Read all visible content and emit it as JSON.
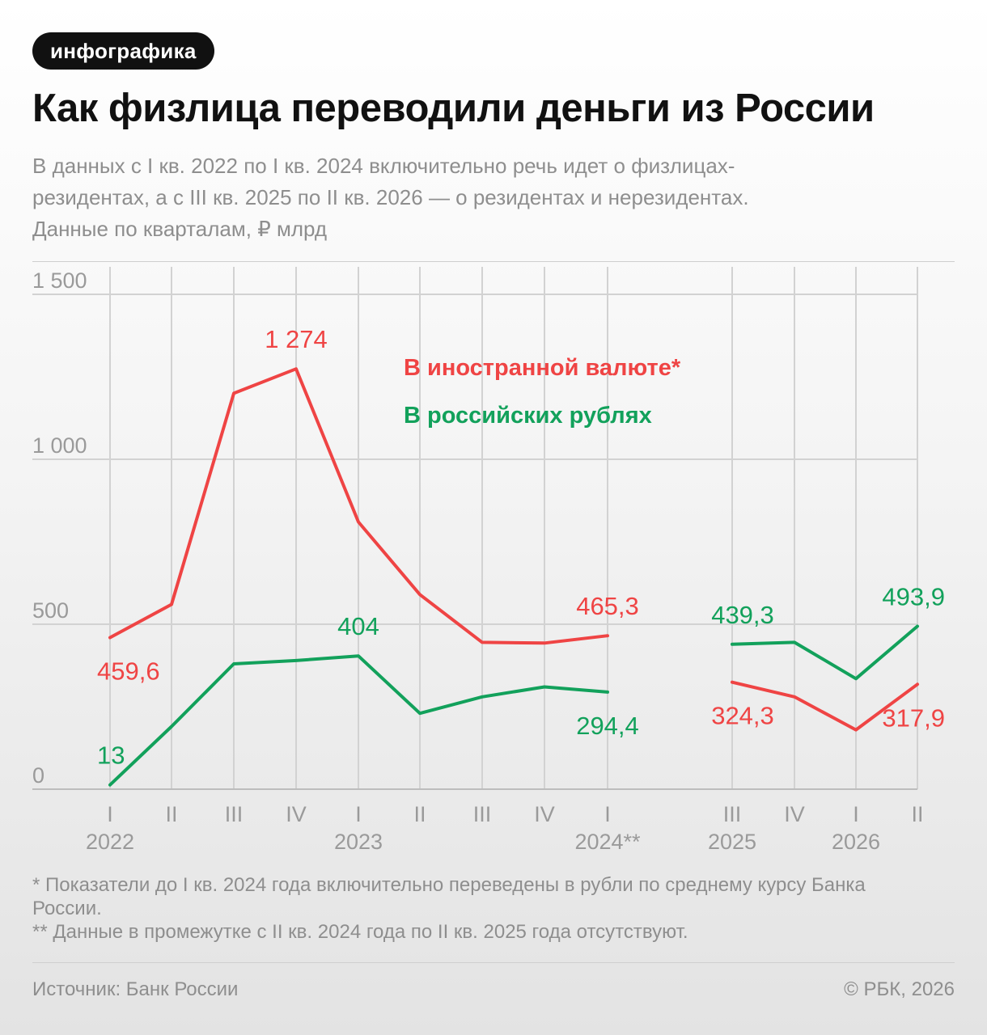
{
  "badge": "инфографика",
  "title": "Как физлица переводили деньги из России",
  "subtitle_lines": [
    "В данных с I кв. 2022 по I кв. 2024 включительно речь идет о физлицах-",
    "резидентах, а с III кв. 2025 по II кв. 2026 — о резидентах и нерезидентах.",
    "Данные по кварталам, ₽ млрд"
  ],
  "notes": [
    "* Показатели до I кв. 2024 года включительно переведены в рубли по среднему курсу Банка России.",
    "** Данные в промежутке с II кв. 2024 года по II кв. 2025 года отсутствуют."
  ],
  "source": "Источник: Банк России",
  "copyright": "© РБК, 2026",
  "chart_data": {
    "type": "line",
    "ylim": [
      0,
      1500
    ],
    "yticks": [
      0,
      500,
      1000,
      1500
    ],
    "ytick_labels": [
      "0",
      "500",
      "1 000",
      "1 500"
    ],
    "grid": true,
    "categories": [
      "I",
      "II",
      "III",
      "IV",
      "I",
      "II",
      "III",
      "IV",
      "I",
      "III",
      "IV",
      "I",
      "II"
    ],
    "year_labels": [
      {
        "index": 0,
        "label": "2022"
      },
      {
        "index": 4,
        "label": "2023"
      },
      {
        "index": 8,
        "label": "2024**"
      },
      {
        "index": 9,
        "label": "2025"
      },
      {
        "index": 11,
        "label": "2026"
      }
    ],
    "segments": [
      [
        0,
        8
      ],
      [
        9,
        12
      ]
    ],
    "series": [
      {
        "name": "В иностранной валюте*",
        "color": "#ef4444",
        "values": [
          459.6,
          560,
          1200,
          1274,
          810,
          590,
          445,
          443,
          465.3,
          324.3,
          280,
          180,
          317.9
        ],
        "data_labels": [
          {
            "index": 0,
            "text": "459,6",
            "pos": "below"
          },
          {
            "index": 3,
            "text": "1 274",
            "pos": "above"
          },
          {
            "index": 8,
            "text": "465,3",
            "pos": "above"
          },
          {
            "index": 9,
            "text": "324,3",
            "pos": "below"
          },
          {
            "index": 12,
            "text": "317,9",
            "pos": "below"
          }
        ]
      },
      {
        "name": "В российских рублях",
        "color": "#12a15b",
        "values": [
          13,
          190,
          380,
          390,
          404,
          230,
          280,
          310,
          294.4,
          439.3,
          445,
          335,
          493.9
        ],
        "data_labels": [
          {
            "index": 0,
            "text": "13",
            "pos": "above"
          },
          {
            "index": 4,
            "text": "404",
            "pos": "above"
          },
          {
            "index": 8,
            "text": "294,4",
            "pos": "below"
          },
          {
            "index": 9,
            "text": "439,3",
            "pos": "above"
          },
          {
            "index": 12,
            "text": "493,9",
            "pos": "above"
          }
        ]
      }
    ]
  }
}
